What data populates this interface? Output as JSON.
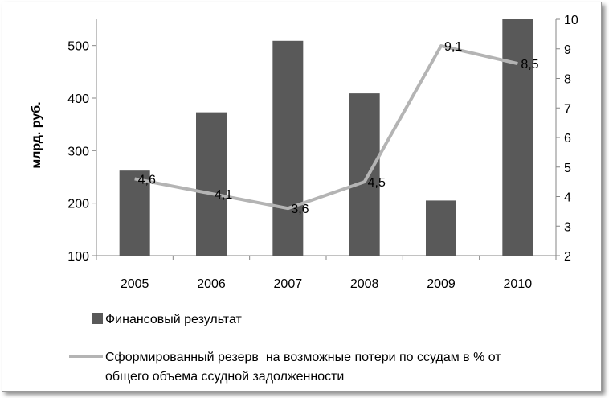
{
  "chart_data": {
    "type": "bar",
    "categories": [
      "2005",
      "2006",
      "2007",
      "2008",
      "2009",
      "2010"
    ],
    "ylabel": "млрд. руб.",
    "ylim": [
      100,
      550
    ],
    "yticks": [
      100,
      200,
      300,
      400,
      500
    ],
    "y2lim": [
      2,
      10
    ],
    "y2ticks": [
      2,
      3,
      4,
      5,
      6,
      7,
      8,
      9,
      10
    ],
    "grid": false,
    "legend_position": "bottom",
    "colors": {
      "bar": "#595959",
      "line": "#b4b4b4"
    },
    "series": [
      {
        "name": "Финансовый результат",
        "type": "bar",
        "axis": "left",
        "values": [
          262,
          373,
          509,
          409,
          205,
          550
        ]
      },
      {
        "name_lines": [
          "Сформированный резерв  на возможные потери по ссудам в % от",
          "общего объема ссудной задолженности"
        ],
        "type": "line",
        "axis": "right",
        "values": [
          4.6,
          4.1,
          3.6,
          4.5,
          9.1,
          8.5
        ],
        "labels": [
          "4,6",
          "4,1",
          "3,6",
          "4,5",
          "9,1",
          "8,5"
        ]
      }
    ]
  }
}
